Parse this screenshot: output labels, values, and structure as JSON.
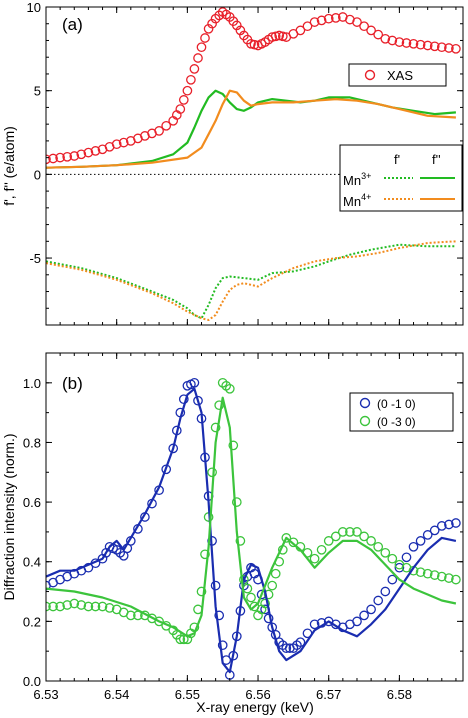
{
  "chart_data": [
    {
      "type": "line",
      "panel_label": "(a)",
      "ylabel": "f', f'' (e/atom)",
      "xlim": [
        6.53,
        6.589
      ],
      "ylim": [
        -9,
        10
      ],
      "yticks": [
        -5,
        0,
        5,
        10
      ],
      "zero_line": true,
      "legend_xas": {
        "label": "XAS"
      },
      "legend_mn": {
        "col1": "f'",
        "col2": "f''",
        "row1": "Mn",
        "row1_sup": "3+",
        "row2": "Mn",
        "row2_sup": "4+"
      },
      "colors": {
        "xas": "#e8202a",
        "mn3": "#22bb22",
        "mn4": "#f28c1e",
        "zero": "#000000"
      },
      "series": [
        {
          "name": "XAS",
          "style": "markers",
          "color": "#e8202a",
          "x": [
            6.53,
            6.532,
            6.534,
            6.536,
            6.538,
            6.54,
            6.542,
            6.544,
            6.546,
            6.548,
            6.549,
            6.55,
            6.551,
            6.552,
            6.553,
            6.554,
            6.555,
            6.556,
            6.557,
            6.558,
            6.559,
            6.56,
            6.561,
            6.562,
            6.563,
            6.564,
            6.566,
            6.568,
            6.57,
            6.572,
            6.574,
            6.576,
            6.578,
            6.58,
            6.582,
            6.584,
            6.586,
            6.588
          ],
          "y": [
            0.9,
            1.0,
            1.1,
            1.3,
            1.5,
            1.8,
            2.0,
            2.3,
            2.6,
            3.2,
            3.9,
            5.0,
            6.3,
            7.6,
            8.7,
            9.3,
            9.7,
            9.4,
            8.9,
            8.3,
            7.8,
            7.7,
            7.9,
            8.2,
            8.3,
            8.2,
            8.6,
            9.1,
            9.3,
            9.4,
            9.1,
            8.6,
            8.1,
            7.9,
            7.8,
            7.7,
            7.6,
            7.5
          ]
        },
        {
          "name": "Mn3+ f''",
          "style": "solid",
          "color": "#22bb22",
          "x": [
            6.53,
            6.535,
            6.54,
            6.545,
            6.548,
            6.55,
            6.551,
            6.552,
            6.553,
            6.554,
            6.555,
            6.556,
            6.557,
            6.558,
            6.559,
            6.56,
            6.562,
            6.564,
            6.566,
            6.568,
            6.57,
            6.573,
            6.576,
            6.579,
            6.582,
            6.585,
            6.588
          ],
          "y": [
            0.4,
            0.45,
            0.55,
            0.8,
            1.2,
            1.9,
            2.8,
            3.8,
            4.6,
            5.0,
            4.8,
            4.3,
            3.9,
            3.8,
            4.0,
            4.3,
            4.5,
            4.4,
            4.3,
            4.4,
            4.6,
            4.6,
            4.3,
            4.0,
            3.8,
            3.6,
            3.7
          ]
        },
        {
          "name": "Mn4+ f''",
          "style": "solid",
          "color": "#f28c1e",
          "x": [
            6.53,
            6.535,
            6.54,
            6.545,
            6.55,
            6.552,
            6.553,
            6.554,
            6.555,
            6.556,
            6.557,
            6.558,
            6.559,
            6.56,
            6.562,
            6.565,
            6.568,
            6.571,
            6.574,
            6.577,
            6.58,
            6.584,
            6.588
          ],
          "y": [
            0.4,
            0.45,
            0.55,
            0.7,
            1.0,
            1.6,
            2.4,
            3.2,
            4.2,
            5.0,
            4.9,
            4.4,
            4.1,
            4.2,
            4.3,
            4.3,
            4.4,
            4.5,
            4.4,
            4.2,
            3.9,
            3.5,
            3.4
          ]
        },
        {
          "name": "Mn3+ f'",
          "style": "dotted",
          "color": "#22bb22",
          "x": [
            6.53,
            6.535,
            6.54,
            6.545,
            6.548,
            6.55,
            6.551,
            6.552,
            6.553,
            6.554,
            6.555,
            6.556,
            6.558,
            6.56,
            6.562,
            6.565,
            6.568,
            6.57,
            6.573,
            6.576,
            6.58,
            6.584,
            6.588
          ],
          "y": [
            -5.2,
            -5.6,
            -6.2,
            -7.0,
            -7.5,
            -8.0,
            -8.4,
            -8.6,
            -7.8,
            -6.8,
            -6.2,
            -6.1,
            -6.2,
            -6.3,
            -5.9,
            -5.8,
            -5.5,
            -5.2,
            -4.8,
            -4.5,
            -4.2,
            -4.3,
            -4.3
          ]
        },
        {
          "name": "Mn4+ f'",
          "style": "dotted",
          "color": "#f28c1e",
          "x": [
            6.53,
            6.535,
            6.54,
            6.545,
            6.548,
            6.55,
            6.552,
            6.553,
            6.554,
            6.555,
            6.556,
            6.557,
            6.558,
            6.559,
            6.56,
            6.562,
            6.565,
            6.568,
            6.571,
            6.574,
            6.577,
            6.58,
            6.584,
            6.588
          ],
          "y": [
            -5.3,
            -5.7,
            -6.3,
            -7.1,
            -7.7,
            -8.2,
            -8.6,
            -8.7,
            -8.4,
            -7.6,
            -6.9,
            -6.6,
            -6.5,
            -6.6,
            -6.7,
            -6.2,
            -5.6,
            -5.2,
            -5.0,
            -4.9,
            -4.7,
            -4.4,
            -4.1,
            -4.0
          ]
        }
      ]
    },
    {
      "type": "line",
      "panel_label": "(b)",
      "ylabel": "Diffraction intensity (norm.)",
      "xlabel": "X-ray energy (keV)",
      "xlim": [
        6.53,
        6.589
      ],
      "ylim": [
        0.0,
        1.1
      ],
      "yticks": [
        0.0,
        0.2,
        0.4,
        0.6,
        0.8,
        1.0
      ],
      "xticks": [
        6.53,
        6.54,
        6.55,
        6.56,
        6.57,
        6.58
      ],
      "legend": [
        {
          "label": "(0 -1 0)",
          "color": "#1a2db0"
        },
        {
          "label": "(0 -3 0)",
          "color": "#3cc43c"
        }
      ],
      "series": [
        {
          "name": "(0 -1 0)",
          "style": "markers",
          "color": "#1a2db0",
          "x": [
            6.53,
            6.532,
            6.534,
            6.536,
            6.538,
            6.539,
            6.54,
            6.541,
            6.542,
            6.544,
            6.546,
            6.548,
            6.549,
            6.55,
            6.551,
            6.552,
            6.553,
            6.554,
            6.555,
            6.556,
            6.557,
            6.558,
            6.559,
            6.56,
            6.561,
            6.562,
            6.563,
            6.564,
            6.565,
            6.566,
            6.568,
            6.57,
            6.572,
            6.574,
            6.576,
            6.578,
            6.58,
            6.582,
            6.584,
            6.586,
            6.588
          ],
          "y": [
            0.32,
            0.34,
            0.36,
            0.38,
            0.41,
            0.45,
            0.44,
            0.42,
            0.47,
            0.55,
            0.64,
            0.78,
            0.9,
            0.99,
            1.0,
            0.88,
            0.62,
            0.32,
            0.12,
            0.02,
            0.15,
            0.32,
            0.38,
            0.34,
            0.24,
            0.18,
            0.13,
            0.11,
            0.11,
            0.13,
            0.19,
            0.2,
            0.18,
            0.2,
            0.24,
            0.3,
            0.38,
            0.45,
            0.49,
            0.52,
            0.53
          ]
        },
        {
          "name": "(0 -3 0)",
          "style": "markers",
          "color": "#3cc43c",
          "x": [
            6.53,
            6.532,
            6.534,
            6.536,
            6.538,
            6.54,
            6.542,
            6.544,
            6.546,
            6.548,
            6.549,
            6.55,
            6.551,
            6.552,
            6.553,
            6.554,
            6.555,
            6.556,
            6.557,
            6.558,
            6.559,
            6.56,
            6.561,
            6.562,
            6.563,
            6.564,
            6.566,
            6.568,
            6.57,
            6.572,
            6.574,
            6.576,
            6.578,
            6.58,
            6.582,
            6.584,
            6.586,
            6.588
          ],
          "y": [
            0.25,
            0.25,
            0.26,
            0.25,
            0.25,
            0.24,
            0.22,
            0.22,
            0.2,
            0.17,
            0.14,
            0.14,
            0.18,
            0.3,
            0.55,
            0.85,
            1.0,
            0.98,
            0.6,
            0.34,
            0.28,
            0.22,
            0.26,
            0.32,
            0.4,
            0.48,
            0.45,
            0.41,
            0.47,
            0.5,
            0.5,
            0.47,
            0.43,
            0.39,
            0.37,
            0.36,
            0.35,
            0.34
          ]
        },
        {
          "name": "(0 -1 0) fit",
          "style": "solid",
          "color": "#1a2db0",
          "x": [
            6.53,
            6.532,
            6.534,
            6.536,
            6.538,
            6.539,
            6.54,
            6.541,
            6.542,
            6.544,
            6.546,
            6.548,
            6.549,
            6.55,
            6.551,
            6.552,
            6.553,
            6.554,
            6.555,
            6.556,
            6.557,
            6.558,
            6.559,
            6.56,
            6.561,
            6.562,
            6.563,
            6.564,
            6.566,
            6.568,
            6.57,
            6.572,
            6.574,
            6.576,
            6.578,
            6.58,
            6.582,
            6.584,
            6.586,
            6.588
          ],
          "y": [
            0.35,
            0.37,
            0.37,
            0.39,
            0.41,
            0.45,
            0.47,
            0.44,
            0.48,
            0.56,
            0.65,
            0.78,
            0.88,
            0.96,
            0.98,
            0.9,
            0.6,
            0.25,
            0.06,
            0.03,
            0.15,
            0.34,
            0.39,
            0.38,
            0.3,
            0.18,
            0.1,
            0.07,
            0.1,
            0.17,
            0.2,
            0.17,
            0.15,
            0.19,
            0.24,
            0.31,
            0.38,
            0.44,
            0.48,
            0.47
          ]
        },
        {
          "name": "(0 -3 0) fit",
          "style": "solid",
          "color": "#3cc43c",
          "x": [
            6.53,
            6.534,
            6.538,
            6.542,
            6.546,
            6.548,
            6.55,
            6.551,
            6.552,
            6.553,
            6.554,
            6.555,
            6.556,
            6.557,
            6.558,
            6.559,
            6.56,
            6.562,
            6.564,
            6.566,
            6.568,
            6.57,
            6.572,
            6.574,
            6.576,
            6.578,
            6.58,
            6.582,
            6.584,
            6.586,
            6.588
          ],
          "y": [
            0.31,
            0.3,
            0.28,
            0.25,
            0.2,
            0.18,
            0.15,
            0.16,
            0.22,
            0.45,
            0.8,
            0.95,
            0.85,
            0.5,
            0.28,
            0.24,
            0.26,
            0.38,
            0.48,
            0.44,
            0.38,
            0.43,
            0.47,
            0.47,
            0.44,
            0.39,
            0.34,
            0.31,
            0.29,
            0.27,
            0.26
          ]
        }
      ]
    }
  ]
}
